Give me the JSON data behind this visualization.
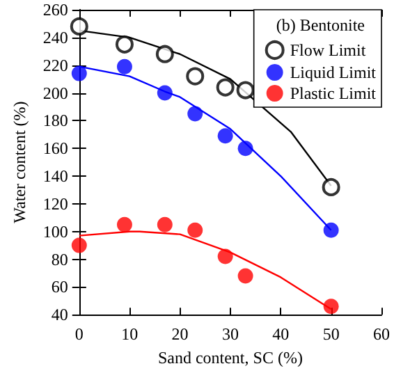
{
  "chart_data": {
    "type": "scatter",
    "xlabel": "Sand content, SC (%)",
    "ylabel": "Water content (%)",
    "legend_title": "(b) Bentonite",
    "x": [
      0,
      9,
      17,
      23,
      29,
      33,
      50
    ],
    "series": [
      {
        "name": "Flow Limit",
        "color": "#000000",
        "marker": "circle",
        "values": [
          248,
          235,
          228,
          212,
          204,
          202,
          132
        ]
      },
      {
        "name": "Liquid Limit",
        "color": "#0000ff",
        "marker": "circle",
        "values": [
          214,
          219,
          200,
          185,
          169,
          160,
          101
        ]
      },
      {
        "name": "Plastic Limit",
        "color": "#ff0000",
        "marker": "circle",
        "values": [
          90,
          105,
          105,
          101,
          82,
          68,
          46
        ]
      },
      {
        "type": "line",
        "color": "#000000",
        "x": [
          0,
          10,
          20,
          30,
          42,
          50
        ],
        "values": [
          245,
          240,
          228,
          210,
          172,
          133
        ]
      },
      {
        "type": "line",
        "color": "#0000ff",
        "x": [
          0,
          10,
          17,
          20,
          30,
          40,
          50
        ],
        "values": [
          219,
          212,
          201,
          197,
          174,
          140,
          101
        ]
      },
      {
        "type": "line",
        "color": "#ff0000",
        "x": [
          0,
          10,
          12,
          20,
          30,
          40,
          50
        ],
        "values": [
          97,
          100,
          100,
          98,
          85,
          67,
          44
        ]
      }
    ],
    "xlim": [
      0,
      60
    ],
    "xticks": [
      0,
      10,
      20,
      30,
      40,
      50,
      60
    ],
    "ylim": [
      40,
      260
    ],
    "yticks": [
      40,
      60,
      80,
      100,
      120,
      140,
      160,
      180,
      200,
      220,
      240,
      260
    ],
    "grid": false,
    "legend": "top right"
  }
}
